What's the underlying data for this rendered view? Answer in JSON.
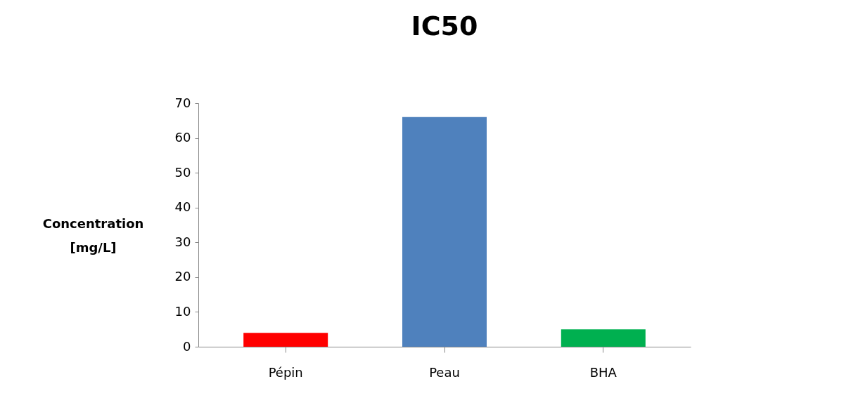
{
  "chart_data": {
    "type": "bar",
    "title": "IC50",
    "ylabel": "Concentration [mg/L]",
    "categories": [
      "Pépin",
      "Peau",
      "BHA"
    ],
    "values": [
      4,
      66,
      5
    ],
    "colors": [
      "#ff0000",
      "#4f81bd",
      "#00b050"
    ],
    "ylim": [
      0,
      70
    ],
    "yticks": [
      0,
      10,
      20,
      30,
      40,
      50,
      60,
      70
    ],
    "grid": false,
    "legend": false
  }
}
